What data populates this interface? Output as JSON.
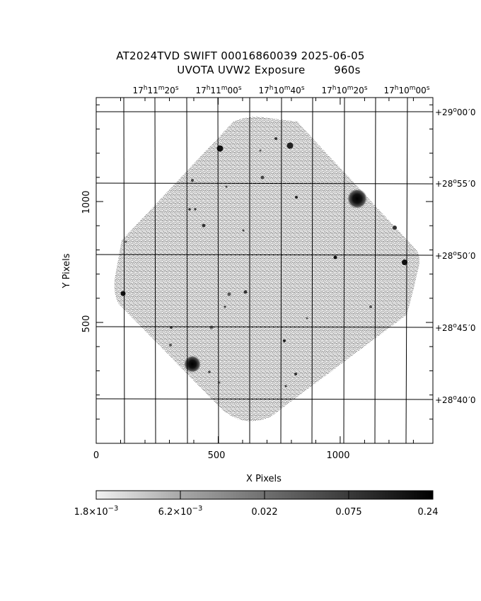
{
  "title": {
    "line1": "AT2024TVD SWIFT 00016860039 2025-06-05",
    "line2": "UVOTA UVW2 Exposure        960s"
  },
  "axes": {
    "xlabel": "X Pixels",
    "ylabel": "Y Pixels",
    "xlim": [
      0,
      1380
    ],
    "ylim": [
      0,
      1430
    ],
    "xticks": [
      0,
      500,
      1000
    ],
    "yticks": [
      500,
      1000
    ],
    "x_tick_labels": [
      "0",
      "500",
      "1000"
    ],
    "y_tick_labels": [
      "500",
      "1000"
    ]
  },
  "ra_labels": [
    {
      "h": "17",
      "hu": "h",
      "m": "11",
      "mu": "m",
      "s": "20",
      "su": "s"
    },
    {
      "h": "17",
      "hu": "h",
      "m": "11",
      "mu": "m",
      "s": "00",
      "su": "s"
    },
    {
      "h": "17",
      "hu": "h",
      "m": "10",
      "mu": "m",
      "s": "40",
      "su": "s"
    },
    {
      "h": "17",
      "hu": "h",
      "m": "10",
      "mu": "m",
      "s": "20",
      "su": "s"
    },
    {
      "h": "17",
      "hu": "h",
      "m": "10",
      "mu": "m",
      "s": "00",
      "su": "s"
    }
  ],
  "dec_labels": [
    {
      "d": "+29",
      "du": "o",
      "m": "00",
      "s": "0"
    },
    {
      "d": "+28",
      "du": "o",
      "m": "55",
      "s": "0"
    },
    {
      "d": "+28",
      "du": "o",
      "m": "50",
      "s": "0"
    },
    {
      "d": "+28",
      "du": "o",
      "m": "45",
      "s": "0"
    },
    {
      "d": "+28",
      "du": "o",
      "m": "40",
      "s": "0"
    }
  ],
  "colorbar": {
    "labels": [
      {
        "m": "1.8×10",
        "e": "−3"
      },
      {
        "m": "6.2×10",
        "e": "−3"
      },
      {
        "m": "0.022",
        "e": ""
      },
      {
        "m": "0.075",
        "e": ""
      },
      {
        "m": "0.24",
        "e": ""
      }
    ]
  },
  "colors": {
    "background": "#ffffff",
    "foreground": "#000000",
    "sky": "#a6a6a6"
  }
}
